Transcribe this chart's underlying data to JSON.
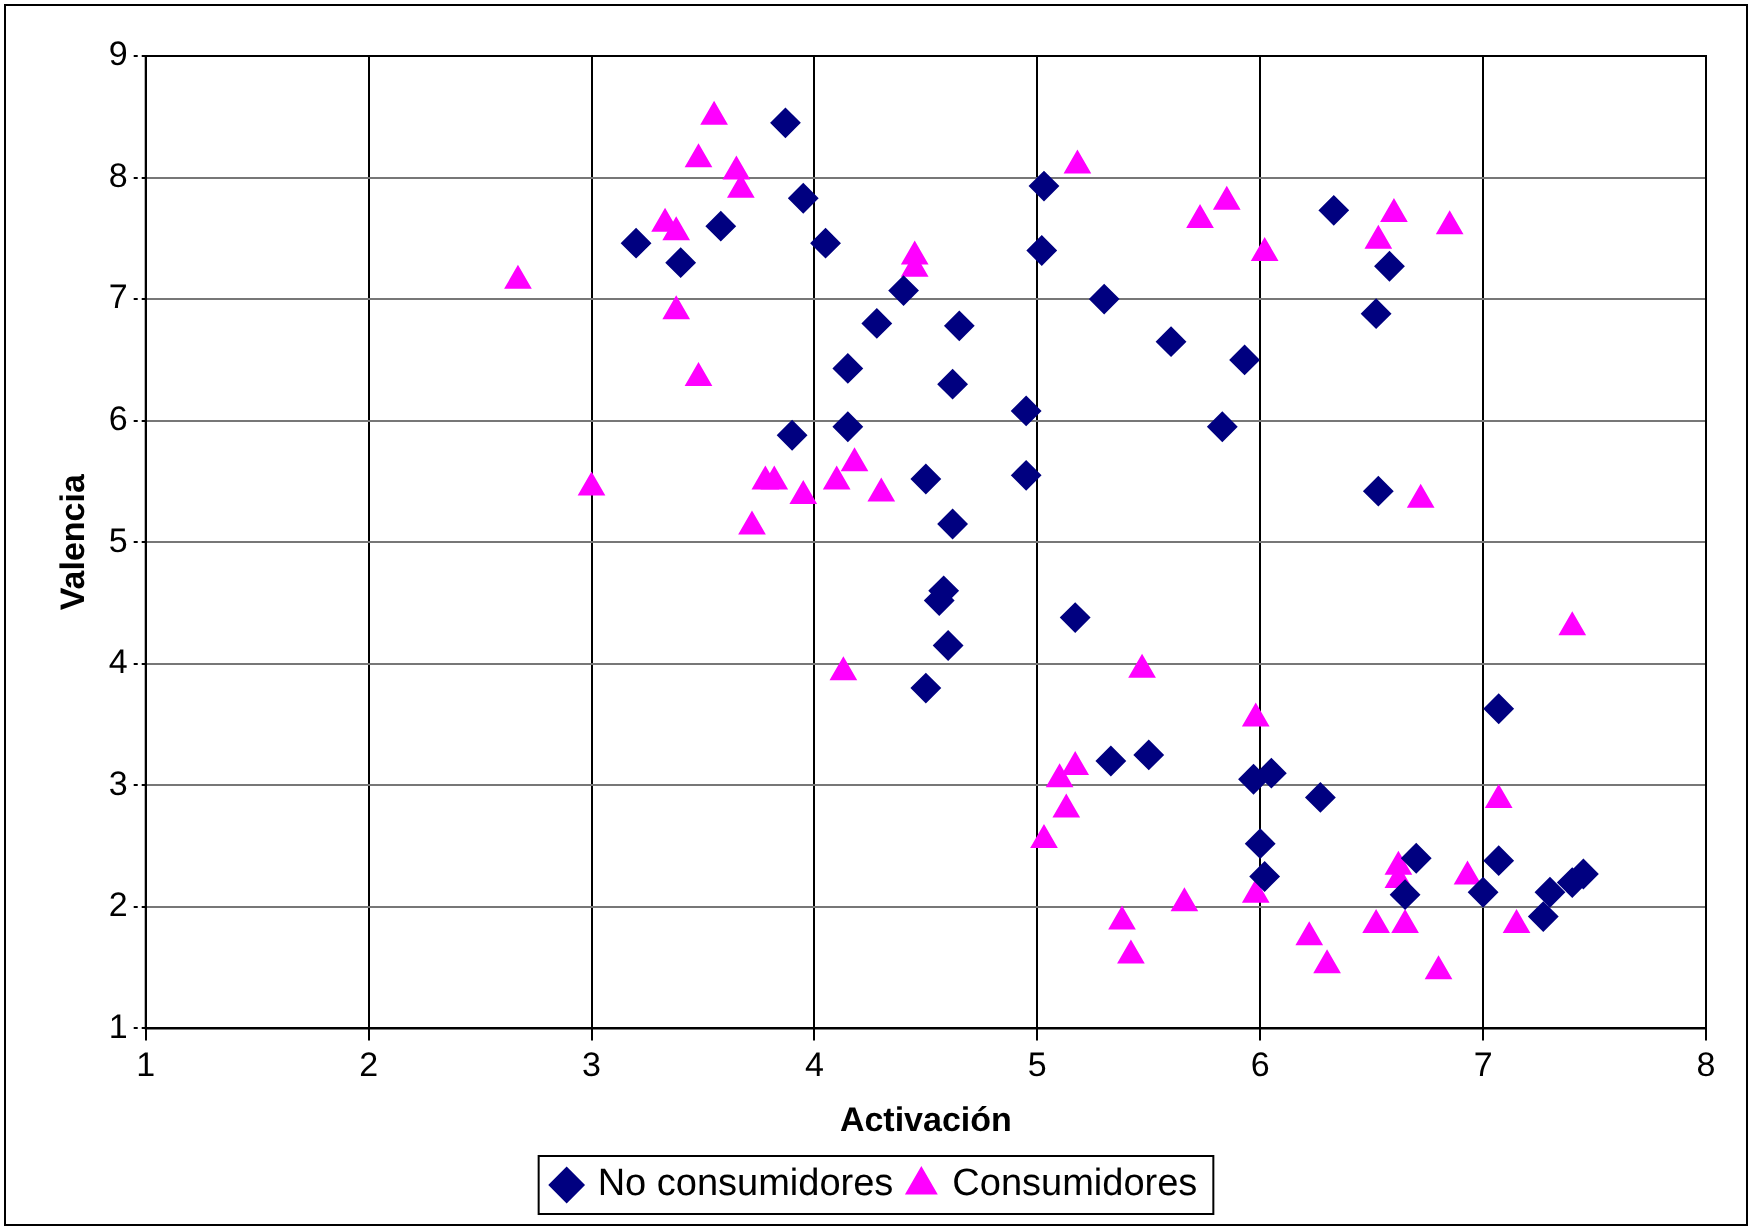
{
  "chart_data": {
    "type": "scatter",
    "xlabel": "Activación",
    "ylabel": "Valencia",
    "xlim": [
      1,
      8
    ],
    "xticks": [
      1,
      2,
      3,
      4,
      5,
      6,
      7,
      8
    ],
    "ylim": [
      1,
      9
    ],
    "yticks": [
      1,
      2,
      3,
      4,
      5,
      6,
      7,
      8,
      9
    ],
    "grid": true,
    "legend": "bottom",
    "series": [
      {
        "name": "No consumidores",
        "color": "#000080",
        "marker": "diamond",
        "x": [
          3.2,
          3.58,
          3.4,
          3.87,
          3.95,
          4.05,
          4.15,
          4.28,
          4.4,
          3.9,
          4.15,
          4.65,
          4.62,
          4.5,
          4.62,
          4.58,
          4.56,
          4.6,
          4.5,
          5.03,
          5.02,
          4.95,
          4.95,
          5.3,
          5.6,
          5.17,
          5.33,
          5.5,
          5.83,
          5.93,
          6.33,
          6.52,
          6.58,
          6.53,
          5.97,
          6.05,
          6.0,
          6.02,
          6.27,
          6.65,
          6.7,
          7.0,
          7.07,
          7.07,
          7.27,
          7.3,
          7.4,
          7.45
        ],
        "values": [
          7.46,
          7.6,
          7.3,
          8.45,
          7.83,
          7.46,
          6.43,
          6.8,
          7.07,
          5.88,
          5.95,
          6.78,
          6.3,
          5.52,
          5.15,
          4.6,
          4.52,
          4.15,
          3.8,
          7.93,
          7.4,
          6.08,
          5.55,
          7.0,
          6.65,
          4.38,
          3.2,
          3.25,
          5.95,
          6.5,
          7.73,
          6.88,
          7.27,
          5.42,
          3.05,
          3.1,
          2.52,
          2.25,
          2.9,
          2.1,
          2.4,
          2.12,
          2.38,
          3.63,
          1.92,
          2.12,
          2.2,
          2.27
        ]
      },
      {
        "name": "Consumidores",
        "color": "#ff00ff",
        "marker": "triangle",
        "x": [
          2.67,
          3.0,
          3.33,
          3.38,
          3.55,
          3.48,
          3.65,
          3.67,
          3.38,
          3.48,
          3.72,
          3.78,
          3.82,
          3.95,
          4.1,
          4.18,
          4.3,
          4.13,
          4.45,
          4.45,
          5.18,
          5.03,
          5.1,
          5.17,
          5.13,
          5.47,
          5.38,
          5.42,
          5.66,
          5.73,
          5.85,
          6.02,
          5.98,
          5.98,
          6.22,
          6.3,
          6.52,
          6.53,
          6.6,
          6.85,
          6.72,
          6.62,
          6.62,
          6.65,
          6.8,
          6.93,
          7.07,
          7.15,
          7.4
        ],
        "values": [
          7.15,
          5.45,
          7.62,
          7.55,
          8.5,
          8.15,
          8.05,
          7.9,
          6.9,
          6.35,
          5.13,
          5.5,
          5.5,
          5.38,
          5.5,
          5.65,
          5.4,
          3.93,
          7.35,
          7.25,
          8.1,
          2.55,
          3.05,
          3.15,
          2.8,
          3.95,
          1.88,
          1.6,
          2.03,
          7.65,
          7.8,
          7.38,
          3.55,
          2.1,
          1.75,
          1.52,
          1.85,
          7.48,
          7.7,
          7.6,
          5.35,
          2.33,
          2.22,
          1.85,
          1.47,
          2.25,
          2.88,
          1.85,
          4.3
        ]
      }
    ]
  }
}
